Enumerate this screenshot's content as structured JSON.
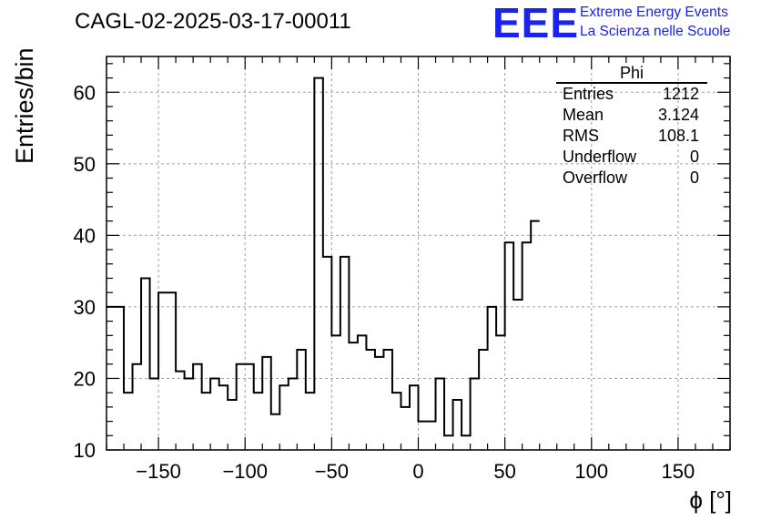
{
  "title": "CAGL-02-2025-03-17-00011",
  "logo": {
    "mark": "EEE",
    "line1": "Extreme Energy Events",
    "line2": "La Scienza nelle Scuole",
    "color": "#1a22f0"
  },
  "stats": {
    "title": "Phi",
    "rows": [
      {
        "label": "Entries",
        "value": "1212"
      },
      {
        "label": "Mean",
        "value": "3.124"
      },
      {
        "label": "RMS",
        "value": "108.1"
      },
      {
        "label": "Underflow",
        "value": "0"
      },
      {
        "label": "Overflow",
        "value": "0"
      }
    ]
  },
  "chart_data": {
    "type": "histogram-step",
    "title": "CAGL-02-2025-03-17-00011",
    "xlabel": "ϕ [°]",
    "ylabel": "Entries/bin",
    "xlim": [
      -180,
      180
    ],
    "ylim": [
      10,
      65
    ],
    "bin_width": 5,
    "x_ticks": [
      -150,
      -100,
      -50,
      0,
      50,
      100,
      150
    ],
    "x_tick_labels": [
      "−150",
      "−100",
      "−50",
      "0",
      "50",
      "100",
      "150"
    ],
    "y_ticks": [
      10,
      20,
      30,
      40,
      50,
      60
    ],
    "y_tick_labels": [
      "10",
      "20",
      "30",
      "40",
      "50",
      "60"
    ],
    "grid": true,
    "line_color": "#000000",
    "bin_edges_start": -180,
    "values": [
      30,
      30,
      18,
      22,
      34,
      20,
      32,
      32,
      21,
      20,
      22,
      18,
      20,
      19,
      17,
      22,
      22,
      18,
      23,
      15,
      19,
      20,
      24,
      18,
      62,
      37,
      26,
      37,
      25,
      26,
      24,
      23,
      24,
      18,
      16,
      19,
      14,
      14,
      20,
      12,
      17,
      12,
      20,
      24,
      30,
      26,
      39,
      31,
      39,
      42
    ]
  }
}
